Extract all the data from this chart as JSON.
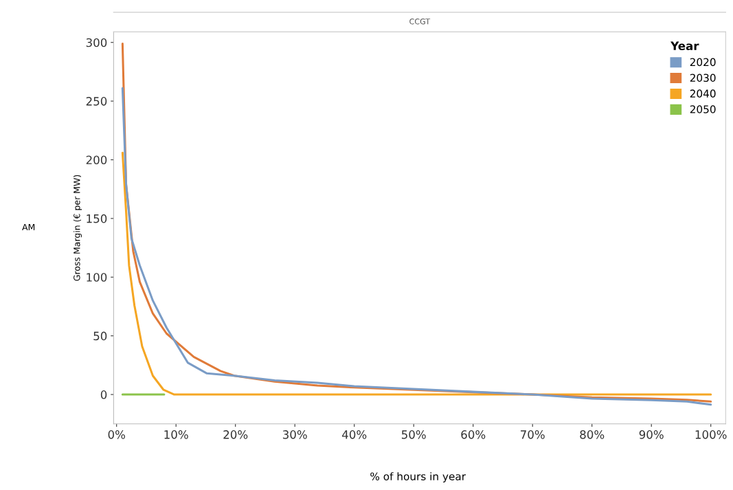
{
  "chart_data": {
    "type": "line",
    "title": "CCGT",
    "xlabel": "% of hours in year",
    "ylabel": "Gross Margin (€ per MW)",
    "legend_title": "Year",
    "annotations": [
      "AM"
    ],
    "xlim": [
      -0.5,
      102.5
    ],
    "ylim": [
      -25,
      309
    ],
    "xticks": [
      {
        "value": 0,
        "label": "0%"
      },
      {
        "value": 10,
        "label": "10%"
      },
      {
        "value": 20,
        "label": "20%"
      },
      {
        "value": 30,
        "label": "30%"
      },
      {
        "value": 40,
        "label": "40%"
      },
      {
        "value": 50,
        "label": "50%"
      },
      {
        "value": 60,
        "label": "60%"
      },
      {
        "value": 70,
        "label": "70%"
      },
      {
        "value": 80,
        "label": "80%"
      },
      {
        "value": 90,
        "label": "90%"
      },
      {
        "value": 100,
        "label": "100%"
      }
    ],
    "yticks": [
      0,
      50,
      100,
      150,
      200,
      250,
      300
    ],
    "grid": false,
    "legend": "top right",
    "series": [
      {
        "name": "2020",
        "color": "#7a9cc6",
        "x": [
          1.0,
          1.6,
          2.5,
          3.9,
          6.1,
          8.4,
          12,
          15.2,
          19.8,
          26.6,
          33.8,
          40,
          50,
          60,
          70,
          80,
          90,
          96,
          100
        ],
        "values": [
          261,
          179,
          133,
          110,
          80,
          57,
          27,
          18,
          16,
          12,
          10,
          7,
          4.7,
          2.3,
          0,
          -3.5,
          -4.8,
          -6,
          -8.6
        ]
      },
      {
        "name": "2030",
        "color": "#e07b39",
        "x": [
          1.0,
          1.6,
          2.8,
          3.9,
          6.1,
          8.4,
          13,
          17.5,
          19.8,
          26.6,
          33.8,
          40,
          50,
          60,
          70,
          80,
          90,
          96,
          100
        ],
        "values": [
          299,
          179,
          122,
          96,
          69,
          52,
          32,
          20,
          16,
          11,
          7.6,
          6,
          4,
          2,
          0,
          -2.5,
          -3.5,
          -4.5,
          -6
        ]
      },
      {
        "name": "2040",
        "color": "#f5a623",
        "x": [
          1.0,
          1.6,
          2.1,
          3.0,
          4.3,
          6.1,
          7.9,
          9.7,
          20,
          40,
          60,
          80,
          100
        ],
        "values": [
          206,
          156,
          110,
          76,
          41,
          16,
          4,
          0,
          0,
          0,
          0,
          0,
          0
        ]
      },
      {
        "name": "2050",
        "color": "#8bc34a",
        "x": [
          1.0,
          4.5,
          8.0
        ],
        "values": [
          0,
          0,
          0
        ]
      }
    ]
  }
}
